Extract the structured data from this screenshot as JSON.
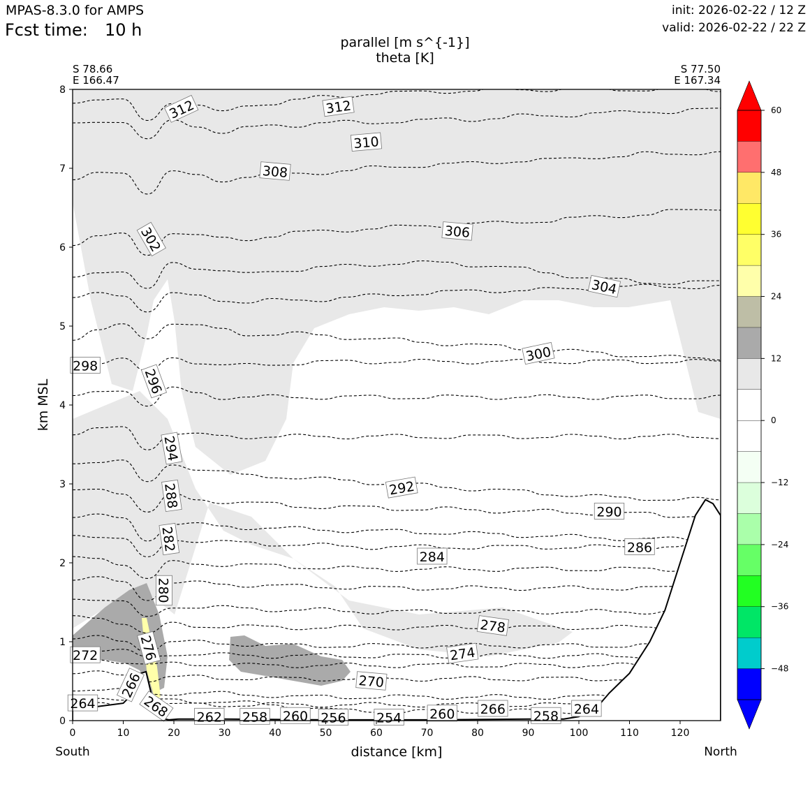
{
  "header": {
    "model": "MPAS-8.3.0 for AMPS",
    "fcst_label": "Fcst time:",
    "fcst_value": "10 h",
    "init": "init: 2026-02-22 / 12 Z",
    "valid": "valid: 2026-02-22 / 22 Z"
  },
  "chart_data": {
    "type": "cross-section",
    "title_line1": "parallel [m s^{-1}]",
    "title_line2": "theta [K]",
    "xlabel": "distance [km]",
    "ylabel": "km MSL",
    "xlim": [
      0,
      128
    ],
    "ylim": [
      0,
      8
    ],
    "xticks": [
      0,
      10,
      20,
      30,
      40,
      50,
      60,
      70,
      80,
      90,
      100,
      110,
      120
    ],
    "yticks": [
      0,
      1,
      2,
      3,
      4,
      5,
      6,
      7,
      8
    ],
    "left_end": {
      "lat": "S 78.66",
      "lon": "E 166.47",
      "dir": "South"
    },
    "right_end": {
      "lat": "S 77.50",
      "lon": "E 167.34",
      "dir": "North"
    },
    "terrain": {
      "x": [
        0,
        5,
        10,
        12,
        13.5,
        14.5,
        15.5,
        16.5,
        17.5,
        19,
        21,
        30,
        50,
        70,
        90,
        97,
        100,
        104,
        106,
        110,
        114,
        117,
        120,
        123,
        125,
        126.5,
        128
      ],
      "z": [
        0.15,
        0.18,
        0.22,
        0.35,
        0.6,
        0.62,
        0.35,
        0.12,
        0.03,
        0.01,
        0.02,
        0.02,
        0.01,
        0.01,
        0.02,
        0.02,
        0.05,
        0.2,
        0.35,
        0.6,
        1.0,
        1.4,
        2.0,
        2.6,
        2.8,
        2.75,
        2.6
      ]
    },
    "theta_levels": [
      {
        "level": 312,
        "label_x": 21.5,
        "label_z": 7.75,
        "rot": -25,
        "z": [
          7.85,
          7.88,
          7.85,
          7.6,
          7.85,
          7.8,
          7.7,
          7.8,
          7.83,
          7.86,
          7.9,
          7.92,
          7.95,
          7.95,
          7.97,
          7.98,
          7.98,
          8.0,
          8.0,
          8.0,
          8.0,
          8.0,
          8.0,
          8.0,
          8.0,
          8.0,
          8.0
        ]
      },
      {
        "level": 310,
        "label_x": 58,
        "label_z": 7.33,
        "rot": -5,
        "z": [
          7.55,
          7.6,
          7.6,
          7.35,
          7.6,
          7.55,
          7.45,
          7.5,
          7.55,
          7.55,
          7.57,
          7.58,
          7.58,
          7.6,
          7.6,
          7.62,
          7.62,
          7.64,
          7.66,
          7.66,
          7.68,
          7.7,
          7.7,
          7.72,
          7.72,
          7.74,
          7.74
        ]
      },
      {
        "level": 308,
        "label_x": 40,
        "label_z": 6.96,
        "rot": 5,
        "z": [
          6.85,
          6.92,
          6.95,
          6.7,
          6.95,
          6.9,
          6.85,
          6.9,
          6.92,
          6.93,
          6.95,
          6.97,
          7.0,
          7.02,
          7.04,
          7.05,
          7.06,
          7.08,
          7.1,
          7.1,
          7.12,
          7.15,
          7.15,
          7.18,
          7.18,
          7.2,
          7.2
        ]
      },
      {
        "level": 306,
        "label_x": 76,
        "label_z": 6.2,
        "rot": 5,
        "z": [
          6.05,
          6.15,
          6.15,
          5.9,
          6.2,
          6.15,
          6.1,
          6.1,
          6.15,
          6.18,
          6.2,
          6.22,
          6.24,
          6.25,
          6.27,
          6.28,
          6.3,
          6.3,
          6.32,
          6.34,
          6.36,
          6.38,
          6.4,
          6.42,
          6.45,
          6.47,
          6.5
        ]
      },
      {
        "level": 304,
        "label_x": 105,
        "label_z": 5.5,
        "rot": 12,
        "z": [
          5.6,
          5.7,
          5.7,
          5.45,
          5.8,
          5.75,
          5.7,
          5.65,
          5.7,
          5.72,
          5.74,
          5.76,
          5.78,
          5.8,
          5.8,
          5.8,
          5.78,
          5.76,
          5.72,
          5.68,
          5.64,
          5.6,
          5.58,
          5.56,
          5.55,
          5.55,
          5.56
        ]
      },
      {
        "level": 302,
        "label_x": 15.5,
        "label_z": 6.1,
        "rot": 60,
        "z": [
          5.35,
          5.4,
          5.4,
          5.2,
          5.4,
          5.38,
          5.34,
          5.3,
          5.32,
          5.33,
          5.34,
          5.36,
          5.38,
          5.4,
          5.42,
          5.43,
          5.44,
          5.45,
          5.46,
          5.46,
          5.47,
          5.48,
          5.5,
          5.5,
          5.5,
          5.5,
          5.5
        ]
      },
      {
        "level": 300,
        "label_x": 92,
        "label_z": 4.65,
        "rot": -12,
        "z": [
          4.85,
          4.95,
          5.0,
          4.85,
          5.05,
          5.0,
          4.95,
          4.9,
          4.9,
          4.9,
          4.88,
          4.86,
          4.84,
          4.82,
          4.8,
          4.78,
          4.76,
          4.74,
          4.72,
          4.7,
          4.68,
          4.66,
          4.64,
          4.62,
          4.6,
          4.6,
          4.6
        ]
      },
      {
        "level": 298,
        "label_x": 2.5,
        "label_z": 4.5,
        "rot": 0,
        "z": [
          4.5,
          4.55,
          4.6,
          4.4,
          4.6,
          4.55,
          4.5,
          4.5,
          4.52,
          4.53,
          4.54,
          4.55,
          4.55,
          4.55,
          4.55,
          4.55,
          4.55,
          4.55,
          4.55,
          4.55,
          4.55,
          4.55,
          4.55,
          4.55,
          4.55,
          4.55,
          4.55
        ]
      },
      {
        "level": 296,
        "label_x": 16,
        "label_z": 4.3,
        "rot": 70,
        "z": [
          4.1,
          4.15,
          4.2,
          4.0,
          4.2,
          4.15,
          4.1,
          4.1,
          4.1,
          4.1,
          4.1,
          4.1,
          4.1,
          4.1,
          4.1,
          4.1,
          4.1,
          4.1,
          4.1,
          4.1,
          4.1,
          4.1,
          4.1,
          4.1,
          4.1,
          4.1,
          4.1
        ]
      },
      {
        "level": 294,
        "label_x": 19.5,
        "label_z": 3.45,
        "rot": 80,
        "z": [
          3.65,
          3.7,
          3.7,
          3.45,
          3.65,
          3.62,
          3.6,
          3.6,
          3.6,
          3.6,
          3.6,
          3.6,
          3.6,
          3.6,
          3.6,
          3.6,
          3.6,
          3.6,
          3.6,
          3.6,
          3.6,
          3.6,
          3.6,
          3.6,
          3.6,
          3.6,
          3.6
        ]
      },
      {
        "level": 292,
        "label_x": 65,
        "label_z": 2.95,
        "rot": -10,
        "z": [
          3.25,
          3.3,
          3.3,
          3.0,
          3.25,
          3.2,
          3.15,
          3.1,
          3.1,
          3.08,
          3.06,
          3.04,
          3.02,
          3.0,
          2.98,
          2.96,
          2.94,
          2.92,
          2.9,
          2.88,
          2.86,
          2.84,
          2.82,
          2.82,
          2.8,
          2.8,
          2.8
        ]
      },
      {
        "level": 290,
        "label_x": 106,
        "label_z": 2.65,
        "rot": 0,
        "z": [
          2.9,
          2.92,
          2.9,
          2.65,
          2.85,
          2.8,
          2.78,
          2.76,
          2.74,
          2.72,
          2.71,
          2.7,
          2.7,
          2.69,
          2.68,
          2.68,
          2.67,
          2.66,
          2.65,
          2.65,
          2.64,
          2.63,
          2.62,
          2.62,
          2.6,
          2.6,
          2.6
        ]
      },
      {
        "level": 288,
        "label_x": 19.5,
        "label_z": 2.85,
        "rot": 82,
        "z": [
          2.6,
          2.6,
          2.55,
          2.3,
          2.5,
          2.48,
          2.46,
          2.45,
          2.44,
          2.43,
          2.42,
          2.41,
          2.4,
          2.4,
          2.39,
          2.38,
          2.37,
          2.36,
          2.35,
          2.34,
          2.33,
          2.32,
          2.31,
          2.3,
          2.3,
          2.3,
          2.3
        ]
      },
      {
        "level": 286,
        "label_x": 112,
        "label_z": 2.2,
        "rot": 0,
        "z": [
          2.35,
          2.35,
          2.3,
          2.05,
          2.3,
          2.28,
          2.26,
          2.25,
          2.24,
          2.23,
          2.22,
          2.21,
          2.2,
          2.2,
          2.2,
          2.2,
          2.2,
          2.2,
          2.2,
          2.2,
          2.2,
          2.2,
          2.2,
          2.2,
          2.2,
          2.2,
          2.2
        ]
      },
      {
        "level": 284,
        "label_x": 71,
        "label_z": 2.08,
        "rot": 0,
        "z": [
          2.05,
          2.05,
          2.0,
          1.8,
          2.0,
          1.99,
          1.98,
          1.97,
          1.96,
          1.95,
          1.94,
          1.93,
          1.92,
          1.92,
          1.92,
          1.92,
          1.92,
          1.92,
          1.92,
          1.92,
          1.92,
          1.92,
          1.92,
          1.92,
          1.92,
          1.92,
          1.92
        ]
      },
      {
        "level": 282,
        "label_x": 19,
        "label_z": 2.3,
        "rot": 82,
        "z": [
          1.8,
          1.8,
          1.75,
          1.55,
          1.75,
          1.74,
          1.73,
          1.72,
          1.71,
          1.7,
          1.7,
          1.69,
          1.68,
          1.68,
          1.68,
          1.68,
          1.68,
          1.68,
          1.68,
          1.68,
          1.68,
          1.68,
          1.68,
          1.68,
          1.68,
          1.68,
          1.68
        ]
      },
      {
        "level": 280,
        "label_x": 18,
        "label_z": 1.65,
        "rot": 90,
        "z": [
          1.55,
          1.55,
          1.5,
          1.3,
          1.45,
          1.44,
          1.43,
          1.42,
          1.41,
          1.4,
          1.4,
          1.39,
          1.38,
          1.38,
          1.38,
          1.38,
          1.38,
          1.38,
          1.38,
          1.38,
          1.38,
          1.38,
          1.38,
          1.38,
          1.38,
          1.38,
          1.38
        ]
      },
      {
        "level": 278,
        "label_x": 83,
        "label_z": 1.2,
        "rot": 8,
        "z": [
          1.3,
          1.3,
          1.25,
          1.1,
          1.22,
          1.2,
          1.2,
          1.19,
          1.18,
          1.18,
          1.18,
          1.18,
          1.18,
          1.18,
          1.18,
          1.18,
          1.18,
          1.18,
          1.18,
          1.18,
          1.18,
          1.18,
          1.18,
          1.18,
          1.18,
          1.18,
          1.18
        ]
      },
      {
        "level": 276,
        "label_x": 15,
        "label_z": 0.92,
        "rot": 75,
        "z": [
          1.05,
          1.05,
          1.0,
          0.9,
          1.0,
          0.99,
          0.98,
          0.97,
          0.96,
          0.95,
          0.95,
          0.95,
          0.95,
          0.95,
          0.95,
          0.95,
          0.95,
          0.95,
          0.95,
          0.95,
          0.95,
          0.95,
          0.95,
          0.95,
          0.95,
          0.95,
          0.95
        ]
      },
      {
        "level": 274,
        "label_x": 77,
        "label_z": 0.85,
        "rot": -8,
        "z": [
          0.9,
          0.9,
          0.88,
          0.8,
          0.85,
          0.84,
          0.83,
          0.83,
          0.82,
          0.82,
          0.82,
          0.82,
          0.82,
          0.82,
          0.82,
          0.82,
          0.82,
          0.82,
          0.82,
          0.82,
          0.82,
          0.82,
          0.82,
          0.82,
          0.82,
          0.82,
          0.82
        ]
      },
      {
        "level": 272,
        "label_x": 2.5,
        "label_z": 0.83,
        "rot": 0,
        "z": [
          0.78,
          0.78,
          0.75,
          0.7,
          0.72,
          0.72,
          0.71,
          0.7,
          0.7,
          0.7,
          0.7,
          0.7,
          0.7,
          0.7,
          0.7,
          0.7,
          0.7,
          0.7,
          0.7,
          0.7,
          0.7,
          0.7,
          0.7,
          0.7,
          0.7,
          0.7,
          0.7
        ]
      },
      {
        "level": 270,
        "label_x": 59,
        "label_z": 0.5,
        "rot": 5,
        "z": [
          0.6,
          0.6,
          0.58,
          0.52,
          0.55,
          0.55,
          0.54,
          0.54,
          0.53,
          0.53,
          0.53,
          0.53,
          0.53,
          0.53,
          0.53,
          0.53,
          0.53,
          0.53,
          0.53,
          0.53,
          0.53,
          0.53,
          0.53,
          0.53,
          0.53,
          0.53,
          0.53
        ]
      },
      {
        "level": 268,
        "label_x": 16.5,
        "label_z": 0.18,
        "rot": 35,
        "z": [
          0.4,
          0.4,
          0.38,
          0.33,
          0.35,
          0.35,
          0.34,
          0.33,
          0.32,
          0.3,
          0.3,
          0.3,
          0.3,
          0.3,
          0.3,
          0.3,
          0.3,
          0.3,
          0.3,
          0.3,
          0.3,
          0.3,
          0.3,
          0.3,
          0.3,
          0.3,
          0.3
        ]
      },
      {
        "level": 266,
        "label_x": 11.5,
        "label_z": 0.45,
        "rot": -65,
        "z": [
          0.3,
          0.3,
          0.28,
          0.25,
          0.26,
          0.25,
          0.24,
          0.22,
          0.2,
          0.18,
          0.15,
          0.12,
          0.12,
          0.12,
          0.12,
          0.12,
          0.12,
          0.12,
          0.12,
          0.12,
          0.12,
          0.12,
          0.12,
          0.12,
          0.12,
          0.12,
          0.12
        ]
      },
      {
        "level": 264,
        "label_x": 2,
        "label_z": 0.22,
        "rot": 0,
        "z": [
          0.2,
          0.2,
          0.2,
          0.2,
          0.2,
          0.2,
          0.2,
          0.2,
          0.2,
          0.2,
          0.2,
          0.2,
          0.2,
          0.2,
          0.2,
          0.2,
          0.2,
          0.2,
          0.2,
          0.2,
          0.2,
          0.2,
          0.2,
          0.2,
          0.2,
          0.2,
          0.2
        ]
      }
    ],
    "inline_labels": [
      {
        "text": "312",
        "x": 52.5,
        "z": 7.78,
        "rot": -8
      },
      {
        "text": "262",
        "x": 27,
        "z": 0.05,
        "rot": 0
      },
      {
        "text": "258",
        "x": 36,
        "z": 0.05,
        "rot": 0
      },
      {
        "text": "260",
        "x": 44,
        "z": 0.06,
        "rot": 0
      },
      {
        "text": "256",
        "x": 51.5,
        "z": 0.04,
        "rot": 0
      },
      {
        "text": "254",
        "x": 62.5,
        "z": 0.04,
        "rot": 0
      },
      {
        "text": "260",
        "x": 73,
        "z": 0.09,
        "rot": 0
      },
      {
        "text": "266",
        "x": 83,
        "z": 0.15,
        "rot": 0
      },
      {
        "text": "258",
        "x": 93.5,
        "z": 0.06,
        "rot": 0
      },
      {
        "text": "264",
        "x": 101.5,
        "z": 0.15,
        "rot": 0
      }
    ],
    "colorbar": {
      "ticks": [
        60,
        48,
        36,
        24,
        12,
        0,
        -12,
        -24,
        -36,
        -48
      ],
      "tick_labels": [
        "60",
        "48",
        "36",
        "24",
        "12",
        "0",
        "−12",
        "−24",
        "−36",
        "−48"
      ],
      "bins_top_to_bottom": [
        "#ff0000",
        "#ff6f6f",
        "#ffe866",
        "#ffff30",
        "#ffff66",
        "#ffffaa",
        "#bebea6",
        "#aaaaaa",
        "#e8e8e8",
        "#ffffff",
        "#ffffff",
        "#f4fff4",
        "#dcffdc",
        "#aaffaa",
        "#66ff66",
        "#22ff22",
        "#00e666",
        "#00cccc",
        "#0000ff"
      ],
      "extend_max": "#ff0000",
      "extend_min": "#0000ff"
    },
    "shading": {
      "light_gray": "#e8e8e8",
      "mid_gray": "#aaaaaa",
      "yellow": "#ffffaa"
    }
  }
}
